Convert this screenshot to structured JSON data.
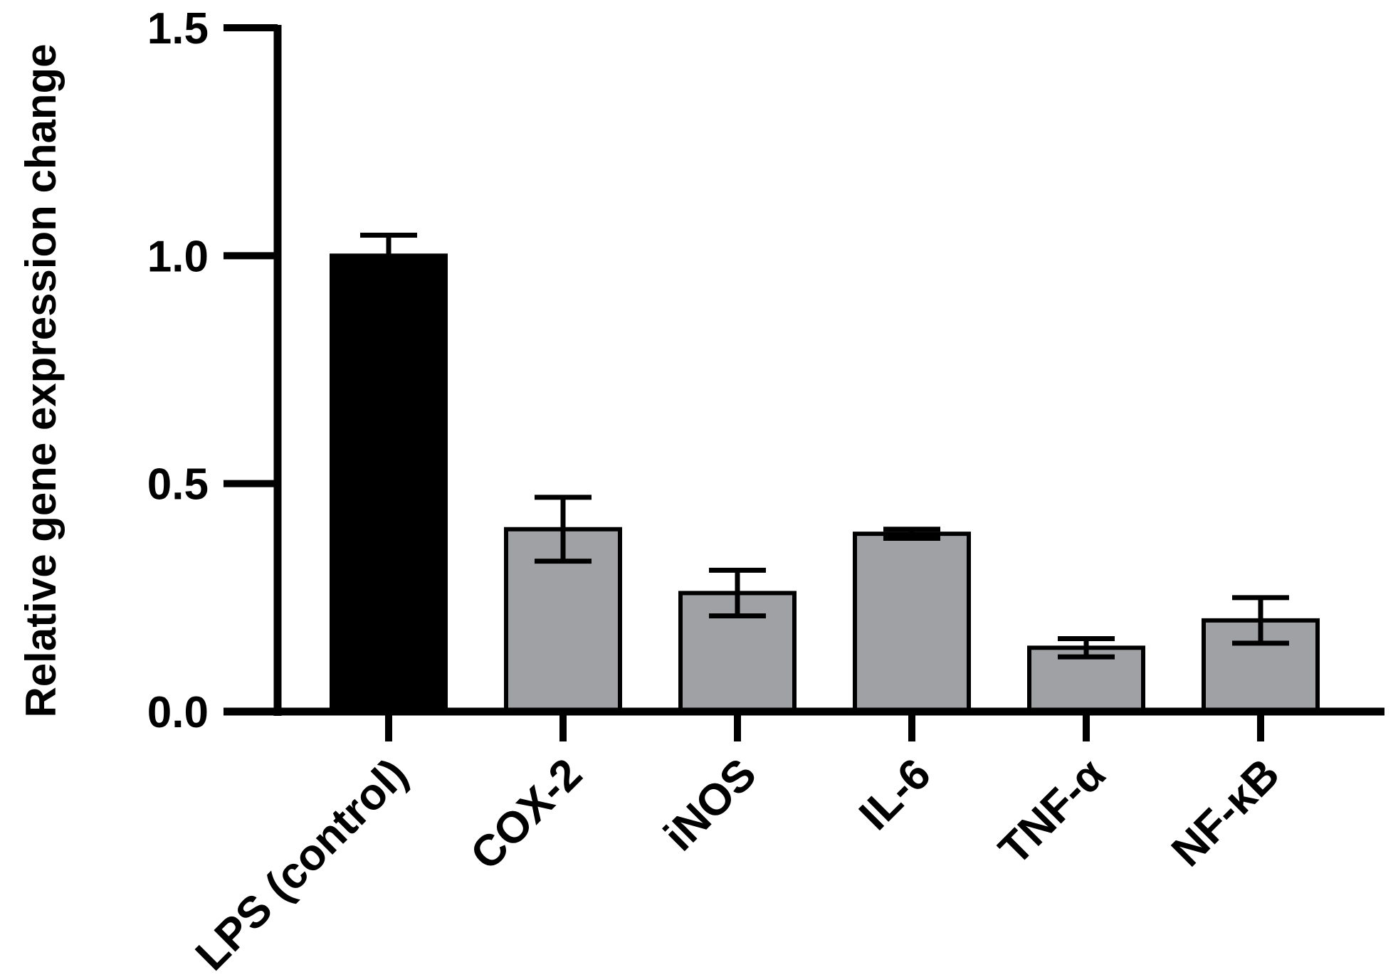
{
  "chart_data": {
    "type": "bar",
    "ylabel": "Relative gene expression change",
    "xlabel": "",
    "ylim": [
      0,
      1.5
    ],
    "yticks": [
      "0.0",
      "0.5",
      "1.0",
      "1.5"
    ],
    "grid": false,
    "categories": [
      "LPS (control)",
      "COX-2",
      "iNOS",
      "IL-6",
      "TNF-α",
      "NF-κB"
    ],
    "values": [
      1.0,
      0.4,
      0.26,
      0.39,
      0.14,
      0.2
    ],
    "error": [
      0.045,
      0.07,
      0.05,
      0.01,
      0.02,
      0.05
    ],
    "colors": [
      "#000000",
      "#a0a1a5",
      "#a0a1a5",
      "#a0a1a5",
      "#a0a1a5",
      "#a0a1a5"
    ],
    "outline_color": "#000000"
  }
}
